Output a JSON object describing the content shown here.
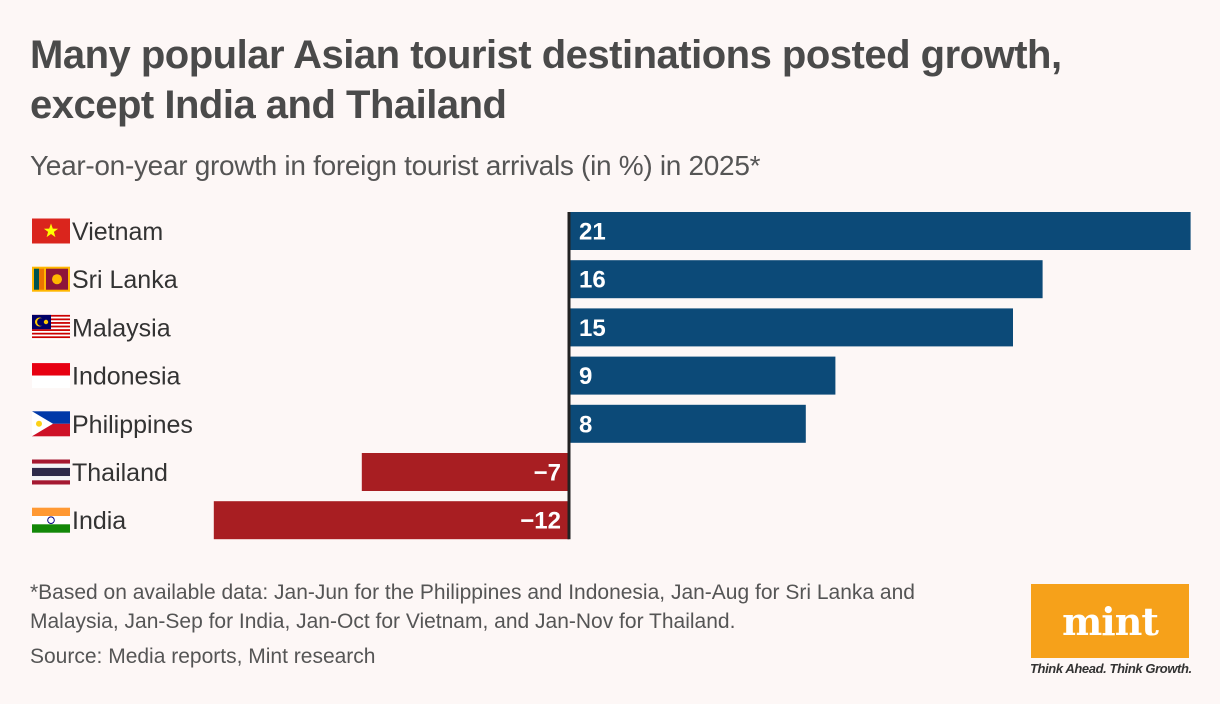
{
  "chart_data": {
    "type": "bar",
    "orientation": "horizontal",
    "title": "Many popular Asian tourist destinations posted growth, except India and Thailand",
    "subtitle": "Year-on-year growth in foreign tourist arrivals (in %) in 2025*",
    "categories": [
      "Vietnam",
      "Sri Lanka",
      "Malaysia",
      "Indonesia",
      "Philippines",
      "Thailand",
      "India"
    ],
    "values": [
      21,
      16,
      15,
      9,
      8,
      -7,
      -12
    ],
    "value_labels": [
      "21",
      "16",
      "15",
      "9",
      "8",
      "−7",
      "−12"
    ],
    "flags": [
      "vietnam-flag-icon",
      "sri-lanka-flag-icon",
      "malaysia-flag-icon",
      "indonesia-flag-icon",
      "philippines-flag-icon",
      "thailand-flag-icon",
      "india-flag-icon"
    ],
    "xlim": [
      -12,
      21
    ],
    "grid": false,
    "colors": {
      "positive": "#0c4a78",
      "negative": "#a81e22",
      "axis": "#222222"
    }
  },
  "footnote": "*Based on available data: Jan-Jun for the Philippines and Indonesia, Jan-Aug for Sri Lanka and Malaysia, Jan-Sep for India, Jan-Oct for Vietnam, and Jan-Nov for Thailand.",
  "source": "Source: Media reports, Mint research",
  "brand": {
    "logo_text": "mint",
    "tagline": "Think Ahead. Think Growth.",
    "color": "#f6a11a"
  }
}
